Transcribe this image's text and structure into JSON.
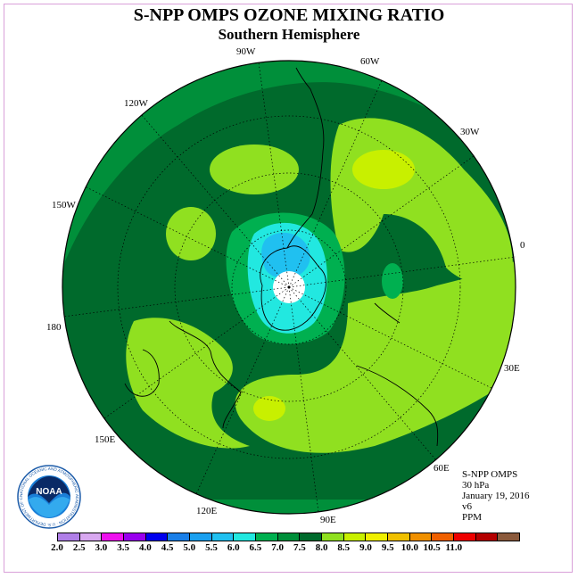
{
  "title": "S-NPP OMPS OZONE MIXING RATIO",
  "subtitle": "Southern Hemisphere",
  "map": {
    "projection": "south polar stereographic",
    "longitude_labels": [
      {
        "text": "0",
        "lon": 0
      },
      {
        "text": "30E",
        "lon": 30
      },
      {
        "text": "60E",
        "lon": 60
      },
      {
        "text": "90E",
        "lon": 90
      },
      {
        "text": "120E",
        "lon": 120
      },
      {
        "text": "150E",
        "lon": 150
      },
      {
        "text": "180",
        "lon": 180
      },
      {
        "text": "150W",
        "lon": -150
      },
      {
        "text": "120W",
        "lon": -120
      },
      {
        "text": "90W",
        "lon": -90
      },
      {
        "text": "60W",
        "lon": -60
      },
      {
        "text": "30W",
        "lon": -30
      }
    ]
  },
  "info": {
    "instrument": "S-NPP OMPS",
    "level": "30 hPa",
    "date": "January 19, 2016",
    "version": "v6",
    "units": "PPM"
  },
  "logo": {
    "text": "NOAA",
    "ring_text": "NATIONAL OCEANIC AND ATMOSPHERIC ADMINISTRATION · U.S. DEPARTMENT OF COMMERCE"
  },
  "colorbar": {
    "colors": [
      "#b07fe8",
      "#d8a8f0",
      "#ee11ee",
      "#9900ee",
      "#0000ee",
      "#1a7fe8",
      "#1aa0f0",
      "#20c0f0",
      "#22e8e0",
      "#00b050",
      "#008f3a",
      "#006a2c",
      "#90e020",
      "#c8f000",
      "#f0f000",
      "#f0c000",
      "#f09000",
      "#f06000",
      "#ee0000",
      "#b40000",
      "#8b5a3c"
    ],
    "tick_labels": [
      "2.0",
      "2.5",
      "3.0",
      "3.5",
      "4.0",
      "4.5",
      "5.0",
      "5.5",
      "6.0",
      "6.5",
      "7.0",
      "7.5",
      "8.0",
      "8.5",
      "9.0",
      "9.5",
      "10.0",
      "10.5",
      "11.0"
    ]
  }
}
